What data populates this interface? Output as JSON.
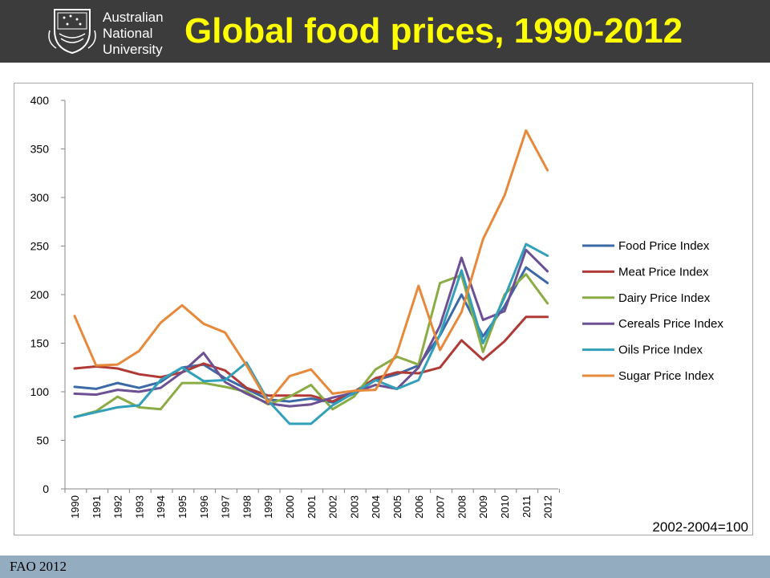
{
  "header": {
    "title": "Global food prices, 1990-2012",
    "logo": {
      "line1": "Australian",
      "line2": "National",
      "line3": "University",
      "icon": "anu-crest-icon"
    }
  },
  "footer": {
    "source": "FAO 2012"
  },
  "colors": {
    "header_bg": "#3c3c3c",
    "title": "#ffff00",
    "footer_bg": "#94acc0"
  },
  "chart_data": {
    "type": "line",
    "title": "",
    "xlabel": "",
    "ylabel": "",
    "ylim": [
      0,
      400
    ],
    "yticks": [
      0,
      50,
      100,
      150,
      200,
      250,
      300,
      350,
      400
    ],
    "grid": false,
    "legend": "right",
    "annotation": "2002-2004=100",
    "categories": [
      "1990",
      "1991",
      "1992",
      "1993",
      "1994",
      "1995",
      "1996",
      "1997",
      "1998",
      "1999",
      "2000",
      "2001",
      "2002",
      "2003",
      "2004",
      "2005",
      "2006",
      "2007",
      "2008",
      "2009",
      "2010",
      "2011",
      "2012"
    ],
    "series": [
      {
        "name": "Food Price Index",
        "color": "#3b6aa6",
        "values": [
          105,
          103,
          109,
          104,
          110,
          125,
          128,
          114,
          103,
          92,
          90,
          93,
          89,
          98,
          112,
          118,
          127,
          158,
          200,
          157,
          188,
          228,
          212
        ]
      },
      {
        "name": "Meat Price Index",
        "color": "#b03a36",
        "values": [
          124,
          126,
          124,
          118,
          115,
          120,
          129,
          122,
          104,
          96,
          96,
          96,
          90,
          100,
          114,
          120,
          119,
          125,
          153,
          133,
          152,
          177,
          177
        ]
      },
      {
        "name": "Dairy Price Index",
        "color": "#8aac44",
        "values": [
          74,
          80,
          95,
          84,
          82,
          109,
          109,
          105,
          100,
          87,
          95,
          107,
          82,
          95,
          123,
          136,
          128,
          212,
          220,
          141,
          200,
          221,
          191
        ]
      },
      {
        "name": "Cereals Price Index",
        "color": "#6d4f93",
        "values": [
          98,
          97,
          102,
          100,
          104,
          120,
          140,
          110,
          98,
          88,
          85,
          87,
          94,
          99,
          107,
          103,
          125,
          168,
          238,
          174,
          183,
          246,
          224
        ]
      },
      {
        "name": "Oils Price Index",
        "color": "#31a0b8",
        "values": [
          74,
          79,
          84,
          86,
          112,
          125,
          111,
          112,
          130,
          91,
          67,
          67,
          86,
          99,
          112,
          103,
          112,
          159,
          225,
          150,
          197,
          252,
          240
        ]
      },
      {
        "name": "Sugar Price Index",
        "color": "#e6893a",
        "values": [
          178,
          127,
          128,
          142,
          171,
          189,
          170,
          161,
          127,
          89,
          116,
          123,
          98,
          101,
          102,
          140,
          209,
          143,
          182,
          257,
          302,
          369,
          328
        ]
      }
    ]
  }
}
